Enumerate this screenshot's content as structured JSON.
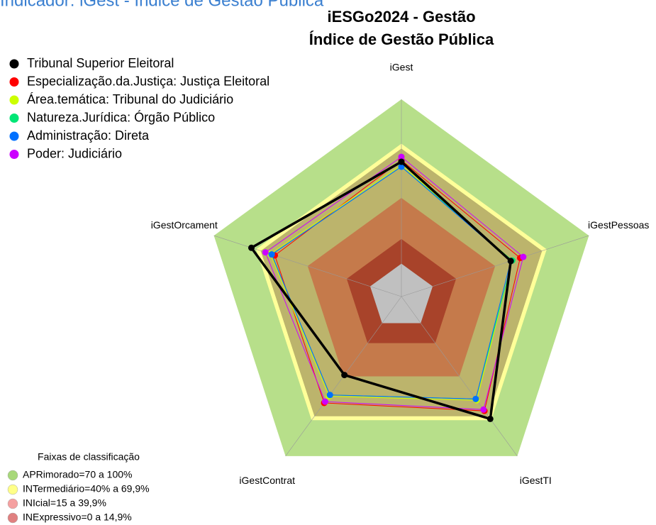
{
  "chart_data": {
    "type": "radar",
    "suptitle": "Indicador: iGest - Índice de Gestão Pública",
    "title": "iESGo2024 - Gestão",
    "subtitle": "Índice de Gestão Pública",
    "categories": [
      "iGest",
      "iGestPessoas",
      "iGestTI",
      "iGestContrat",
      "iGestOrcament"
    ],
    "rlim": [
      -20,
      100
    ],
    "series": [
      {
        "name": "Tribunal Superior Eleitoral",
        "color": "#000000",
        "values": [
          62,
          50,
          72,
          39,
          76
        ]
      },
      {
        "name": "Especialização.da.Justiça: Justiça Eleitoral",
        "color": "#ff0000",
        "values": [
          63,
          56,
          66,
          60,
          61
        ]
      },
      {
        "name": "Área.temática: Tribunal do Judiciário",
        "color": "#ccff00",
        "values": [
          60,
          51,
          58,
          55,
          64
        ]
      },
      {
        "name": "Natureza.Jurídica: Órgão Público",
        "color": "#00e676",
        "values": [
          59,
          51,
          57,
          54,
          63
        ]
      },
      {
        "name": "Administração: Direta",
        "color": "#0070ff",
        "values": [
          59,
          50,
          57,
          54,
          63
        ]
      },
      {
        "name": "Poder: Judiciário",
        "color": "#cc00ff",
        "values": [
          65,
          58,
          65,
          59,
          67
        ]
      }
    ],
    "bands_title": "Faixas de classificação",
    "bands": [
      {
        "name": "APRimorado=70 a 100%",
        "from": 70,
        "to": 100,
        "color": "#a8d87a",
        "fill": "#b7df8a"
      },
      {
        "name": "INTermediário=40% a 69,9%",
        "from": 40,
        "to": 70,
        "color": "#ffff88",
        "fill": "#bcb46c"
      },
      {
        "name": "INIcial=15 a 39,9%",
        "from": 15,
        "to": 40,
        "color": "#f5a0a0",
        "fill": "#c57a4b"
      },
      {
        "name": "INExpressivo=0 a 14,9%",
        "from": 0,
        "to": 15,
        "color": "#e08080",
        "fill": "#a8432a"
      }
    ]
  }
}
